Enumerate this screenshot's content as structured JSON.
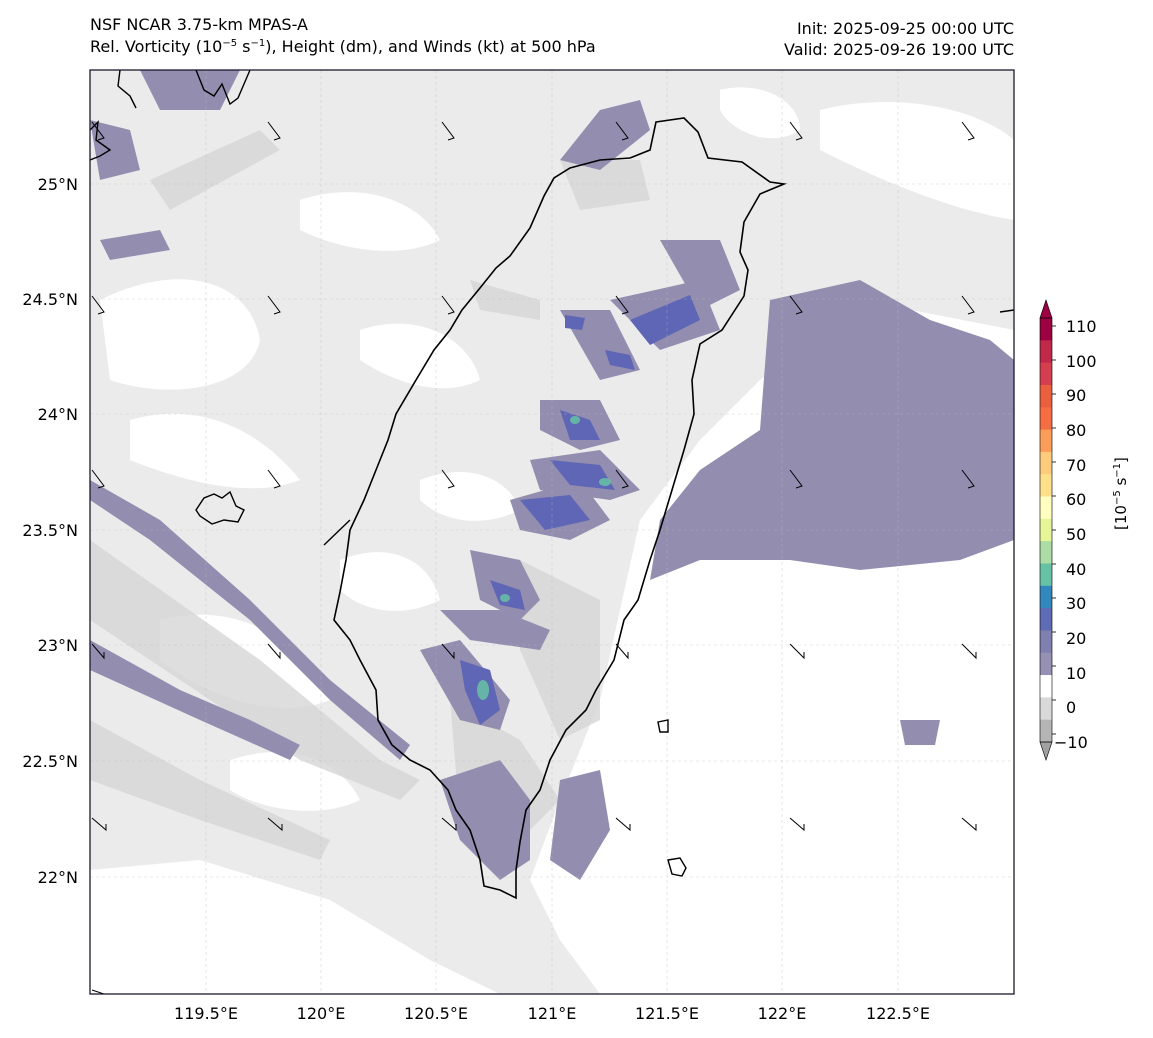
{
  "header": {
    "model": "NSF NCAR 3.75-km MPAS-A",
    "field_prefix": "Rel. Vorticity (10",
    "field_exp1": "−5",
    "field_mid": " s",
    "field_exp2": "−1",
    "field_suffix": "), Height (dm), and Winds (kt) at 500 hPa",
    "init": "Init: 2025-09-25 00:00 UTC",
    "valid": "Valid: 2025-09-26 19:00 UTC"
  },
  "map": {
    "lon_range": [
      119.0,
      123.0
    ],
    "lat_range": [
      21.5,
      25.5
    ],
    "lat_ticks": [
      "25°N",
      "24.5°N",
      "24°N",
      "23.5°N",
      "23°N",
      "22.5°N",
      "22°N"
    ],
    "lon_ticks": [
      "119.5°E",
      "120°E",
      "120.5°E",
      "121°E",
      "121.5°E",
      "122°E",
      "122.5°E"
    ],
    "gridlines": true,
    "ocean_fill": "#ebebeb",
    "land_outline_color": "#000000"
  },
  "colorbar": {
    "ticks": [
      "110",
      "100",
      "90",
      "80",
      "70",
      "60",
      "50",
      "40",
      "30",
      "20",
      "10",
      "0",
      "−10"
    ],
    "label_pre": "[10",
    "label_exp1": "−5",
    "label_mid": " s",
    "label_exp2": "−1",
    "label_post": "]",
    "colors": [
      "#9e0142",
      "#c0294a",
      "#d53e4f",
      "#e9603f",
      "#f46d43",
      "#fb9d59",
      "#fdcb7b",
      "#fee08b",
      "#ffffbf",
      "#e6f598",
      "#abdda4",
      "#66c2a5",
      "#3288bd",
      "#5e6bb5",
      "#7f7fb0",
      "#9590b4",
      "#ffffff",
      "#d9d9d9",
      "#b5b5b5"
    ]
  },
  "chart_data": {
    "type": "heatmap",
    "title": "Rel. Vorticity (10−5 s−1), Height (dm), and Winds (kt) at 500 hPa",
    "x_axis": "longitude",
    "y_axis": "latitude",
    "xlim": [
      119.0,
      123.0
    ],
    "ylim": [
      21.5,
      25.5
    ],
    "colorbar_range": [
      -10,
      110
    ],
    "colorbar_interval": 5,
    "units": "10−5 s−1"
  }
}
